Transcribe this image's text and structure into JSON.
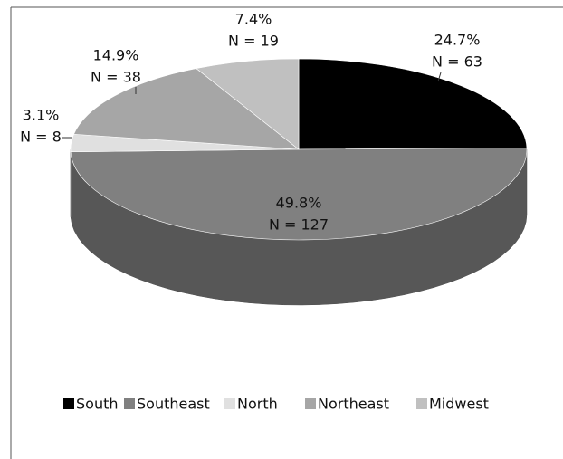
{
  "chart_data": {
    "type": "pie3d",
    "categories": [
      "South",
      "Southeast",
      "North",
      "Northeast",
      "Midwest"
    ],
    "values": [
      24.7,
      49.8,
      3.1,
      14.9,
      7.4
    ],
    "value_labels": [
      "24.7%",
      "49.8%",
      "3.1%",
      "14.9%",
      "7.4%"
    ],
    "count_labels": [
      "N = 63",
      "N = 127",
      "N = 8",
      "N = 38",
      "N = 19"
    ],
    "colors": [
      "#000000",
      "#808080",
      "#e0e0e0",
      "#a6a6a6",
      "#c0c0c0"
    ],
    "legend": "bottom"
  }
}
